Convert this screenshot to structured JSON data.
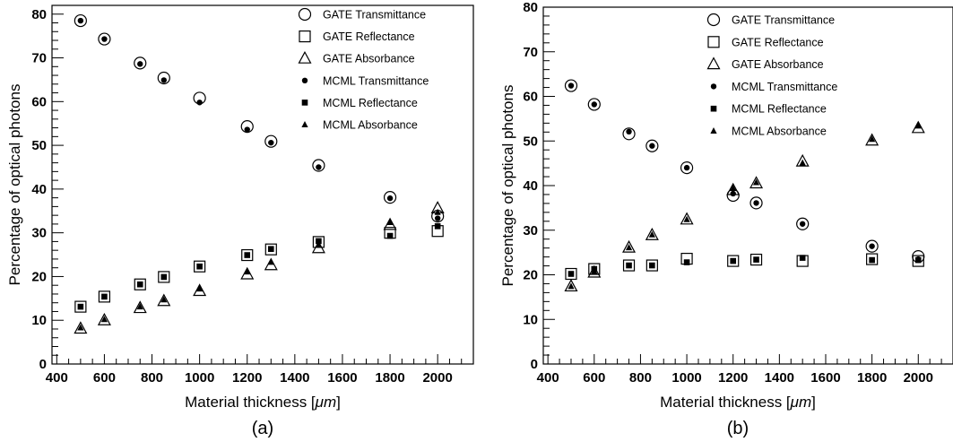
{
  "chart_data": [
    {
      "type": "scatter",
      "panel_label": "(a)",
      "xlabel_prefix": "Material thickness [",
      "xlabel_unit": "μm",
      "xlabel_suffix": "]",
      "ylabel": "Percentage of optical photons",
      "xlim": [
        380,
        2150
      ],
      "ylim": [
        0,
        82
      ],
      "xticks": [
        400,
        600,
        800,
        1000,
        1200,
        1400,
        1600,
        1800,
        2000
      ],
      "yticks": [
        0,
        10,
        20,
        30,
        40,
        50,
        60,
        70,
        80
      ],
      "grid": false,
      "legend_position": "top-right",
      "x": [
        500,
        600,
        750,
        850,
        1000,
        1200,
        1300,
        1500,
        1800,
        2000
      ],
      "series": [
        {
          "name": "GATE Transmittance",
          "marker": "open-circle",
          "values": [
            78.5,
            74.3,
            68.8,
            65.4,
            60.8,
            54.3,
            50.9,
            45.4,
            38.1,
            33.8
          ]
        },
        {
          "name": "GATE Reflectance",
          "marker": "open-square",
          "values": [
            13.1,
            15.4,
            18.2,
            19.9,
            22.3,
            24.9,
            26.2,
            27.9,
            30.0,
            30.4
          ]
        },
        {
          "name": "GATE Absorbance",
          "marker": "open-triangle",
          "values": [
            8.1,
            10.0,
            12.8,
            14.4,
            16.7,
            20.5,
            22.6,
            26.5,
            31.8,
            35.6
          ]
        },
        {
          "name": "MCML Transmittance",
          "marker": "filled-circle",
          "values": [
            78.5,
            74.3,
            68.6,
            64.9,
            59.8,
            53.6,
            50.6,
            45.0,
            37.9,
            33.3
          ]
        },
        {
          "name": "MCML Reflectance",
          "marker": "filled-square",
          "values": [
            13.1,
            15.4,
            18.2,
            19.9,
            22.3,
            24.9,
            26.3,
            28.1,
            29.3,
            31.5
          ]
        },
        {
          "name": "MCML Absorbance",
          "marker": "filled-triangle",
          "values": [
            8.3,
            10.2,
            13.1,
            14.7,
            17.2,
            21.1,
            23.3,
            27.2,
            32.4,
            34.7
          ]
        }
      ]
    },
    {
      "type": "scatter",
      "panel_label": "(b)",
      "xlabel_prefix": "Material thickness [",
      "xlabel_unit": "μm",
      "xlabel_suffix": "]",
      "ylabel": "Percentage of optical photons",
      "xlim": [
        380,
        2150
      ],
      "ylim": [
        0,
        80
      ],
      "xticks": [
        400,
        600,
        800,
        1000,
        1200,
        1400,
        1600,
        1800,
        2000
      ],
      "yticks": [
        0,
        10,
        20,
        30,
        40,
        50,
        60,
        70,
        80
      ],
      "grid": false,
      "legend_position": "top",
      "x": [
        500,
        600,
        750,
        850,
        1000,
        1200,
        1300,
        1500,
        1800,
        2000
      ],
      "series": [
        {
          "name": "GATE Transmittance",
          "marker": "open-circle",
          "values": [
            62.4,
            58.2,
            51.6,
            48.9,
            44.0,
            37.8,
            36.1,
            31.4,
            26.4,
            24.1
          ]
        },
        {
          "name": "GATE Reflectance",
          "marker": "open-square",
          "values": [
            20.2,
            21.3,
            22.1,
            22.1,
            23.6,
            23.1,
            23.4,
            23.1,
            23.5,
            23.1
          ]
        },
        {
          "name": "GATE Absorbance",
          "marker": "open-triangle",
          "values": [
            17.4,
            20.5,
            26.1,
            28.9,
            32.4,
            39.0,
            40.5,
            45.4,
            50.1,
            52.9
          ]
        },
        {
          "name": "MCML Transmittance",
          "marker": "filled-circle",
          "values": [
            62.4,
            58.2,
            52.1,
            48.9,
            44.0,
            38.2,
            36.1,
            31.4,
            26.4,
            23.5
          ]
        },
        {
          "name": "MCML Reflectance",
          "marker": "filled-square",
          "values": [
            20.2,
            21.3,
            22.1,
            22.1,
            22.8,
            23.1,
            23.4,
            23.8,
            23.3,
            23.3
          ]
        },
        {
          "name": "MCML Absorbance",
          "marker": "filled-triangle",
          "values": [
            17.4,
            20.8,
            26.1,
            29.0,
            32.4,
            39.4,
            40.7,
            45.1,
            50.4,
            53.4
          ]
        }
      ]
    }
  ]
}
